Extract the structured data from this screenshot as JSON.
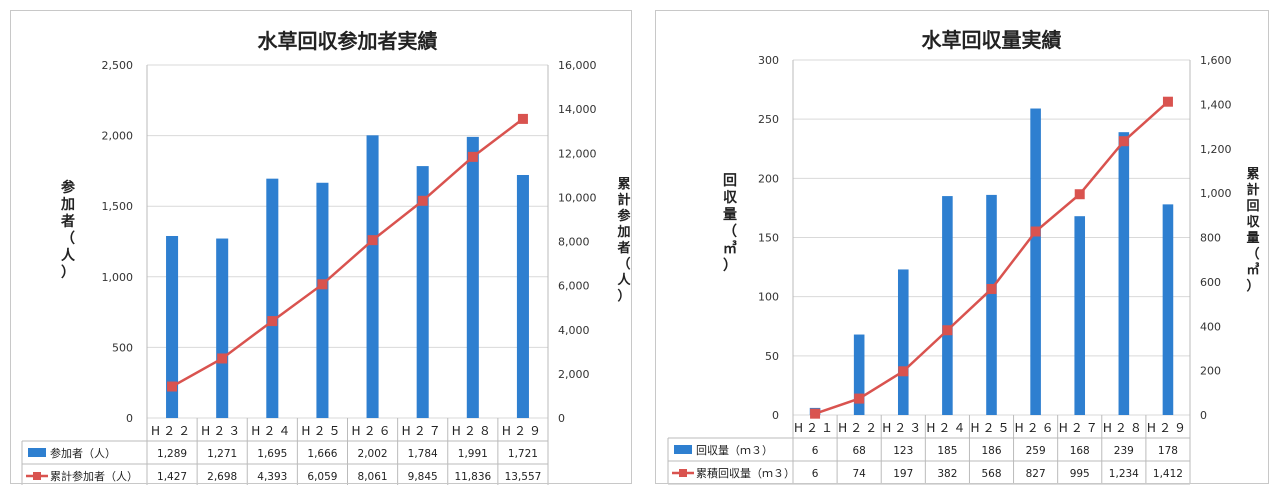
{
  "chart_data": [
    {
      "type": "bar+line",
      "title": "水草回収参加者実績",
      "categories": [
        "H２２",
        "H２３",
        "H２４",
        "H２５",
        "H２６",
        "H２７",
        "H２８",
        "H２９"
      ],
      "ylabel": "参加者（人）",
      "y2label": "累計参加者（人）",
      "ylim": [
        0,
        2500
      ],
      "y2lim": [
        0,
        16000
      ],
      "yticks": [
        "0",
        "500",
        "1,000",
        "1,500",
        "2,000",
        "2,500"
      ],
      "y2ticks": [
        "0",
        "2,000",
        "4,000",
        "6,000",
        "8,000",
        "10,000",
        "12,000",
        "14,000",
        "16,000"
      ],
      "grid": true,
      "legend": "data-table-bottom",
      "series": [
        {
          "name": "参加者（人）",
          "kind": "bar",
          "axis": "left",
          "color": "#2e7fd0",
          "values": [
            1289,
            1271,
            1695,
            1666,
            2002,
            1784,
            1991,
            1721
          ],
          "labels": [
            "1,289",
            "1,271",
            "1,695",
            "1,666",
            "2,002",
            "1,784",
            "1,991",
            "1,721"
          ]
        },
        {
          "name": "累計参加者（人）",
          "kind": "line",
          "axis": "right",
          "color": "#d9534f",
          "values": [
            1427,
            2698,
            4393,
            6059,
            8061,
            9845,
            11836,
            13557
          ],
          "labels": [
            "1,427",
            "2,698",
            "4,393",
            "6,059",
            "8,061",
            "9,845",
            "11,836",
            "13,557"
          ]
        }
      ]
    },
    {
      "type": "bar+line",
      "title": "水草回収量実績",
      "categories": [
        "H２１",
        "H２２",
        "H２３",
        "H２４",
        "H２５",
        "H２６",
        "H２７",
        "H２８",
        "H２９"
      ],
      "ylabel": "回収量（㎥）",
      "y2label": "累計回収量（㎥）",
      "ylim": [
        0,
        300
      ],
      "y2lim": [
        0,
        1600
      ],
      "yticks": [
        "0",
        "50",
        "100",
        "150",
        "200",
        "250",
        "300"
      ],
      "y2ticks": [
        "0",
        "200",
        "400",
        "600",
        "800",
        "1,000",
        "1,200",
        "1,400",
        "1,600"
      ],
      "grid": true,
      "legend": "data-table-bottom",
      "series": [
        {
          "name": "回収量（ｍ３）",
          "kind": "bar",
          "axis": "left",
          "color": "#2e7fd0",
          "values": [
            6,
            68,
            123,
            185,
            186,
            259,
            168,
            239,
            178
          ],
          "labels": [
            "6",
            "68",
            "123",
            "185",
            "186",
            "259",
            "168",
            "239",
            "178"
          ]
        },
        {
          "name": "累積回収量（ｍ３）",
          "kind": "line",
          "axis": "right",
          "color": "#d9534f",
          "values": [
            6,
            74,
            197,
            382,
            568,
            827,
            995,
            1234,
            1412
          ],
          "labels": [
            "6",
            "74",
            "197",
            "382",
            "568",
            "827",
            "995",
            "1,234",
            "1,412"
          ]
        }
      ]
    }
  ]
}
